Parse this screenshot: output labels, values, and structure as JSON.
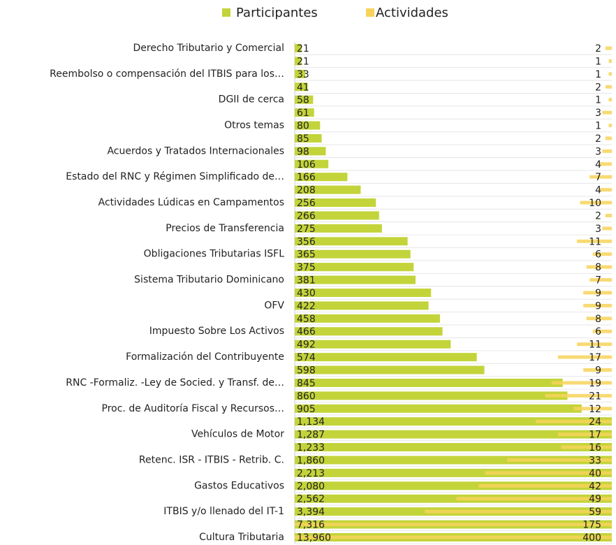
{
  "chart_data": {
    "type": "bar",
    "orientation": "horizontal",
    "categories": [
      "Derecho Tributario y Comercial",
      null,
      "Reembolso o compensación del ITBIS para los…",
      null,
      "DGII de cerca",
      null,
      "Otros temas",
      null,
      "Acuerdos y Tratados Internacionales",
      null,
      "Estado del RNC y Régimen Simplificado de…",
      null,
      "Actividades Lúdicas en Campamentos",
      null,
      "Precios de Transferencia",
      null,
      "Obligaciones Tributarias ISFL",
      null,
      "Sistema Tributario Dominicano",
      null,
      "OFV",
      null,
      "Impuesto Sobre Los Activos",
      null,
      "Formalización del Contribuyente",
      null,
      "RNC -Formaliz. -Ley de Socied. y Transf. de…",
      null,
      "Proc. de Auditoría Fiscal y Recursos…",
      null,
      "Vehículos de Motor",
      null,
      "Retenc. ISR - ITBIS - Retrib. C.",
      null,
      "Gastos Educativos",
      null,
      "ITBIS y/o llenado del IT-1",
      null,
      "Cultura Tributaria"
    ],
    "series": [
      {
        "name": "Participantes",
        "color": "#c3d43a",
        "values": [
          21,
          21,
          33,
          41,
          58,
          61,
          80,
          85,
          98,
          106,
          166,
          208,
          256,
          266,
          275,
          356,
          365,
          375,
          381,
          430,
          422,
          458,
          466,
          492,
          574,
          598,
          845,
          860,
          905,
          1134,
          1287,
          1233,
          1860,
          2213,
          2080,
          2562,
          3394,
          7316,
          13960
        ],
        "value_labels": [
          "21",
          "21",
          "33",
          "41",
          "58",
          "61",
          "80",
          "85",
          "98",
          "106",
          "166",
          "208",
          "256",
          "266",
          "275",
          "356",
          "365",
          "375",
          "381",
          "430",
          "422",
          "458",
          "466",
          "492",
          "574",
          "598",
          "845",
          "860",
          "905",
          "1,134",
          "1,287",
          "1,233",
          "1,860",
          "2,213",
          "2,080",
          "2,562",
          "3,394",
          "7,316",
          "13,960"
        ]
      },
      {
        "name": "Actividades",
        "color": "#f7d35a",
        "axis": "x2",
        "values": [
          2,
          1,
          1,
          2,
          1,
          3,
          1,
          2,
          3,
          4,
          7,
          4,
          10,
          2,
          3,
          11,
          6,
          8,
          7,
          9,
          9,
          8,
          6,
          11,
          17,
          9,
          19,
          21,
          12,
          24,
          17,
          16,
          33,
          40,
          42,
          49,
          59,
          175,
          400
        ]
      }
    ],
    "xlim": [
      0,
      1000
    ],
    "x2lim": [
      0,
      100
    ],
    "x2_reversed": true,
    "legend": "top"
  }
}
